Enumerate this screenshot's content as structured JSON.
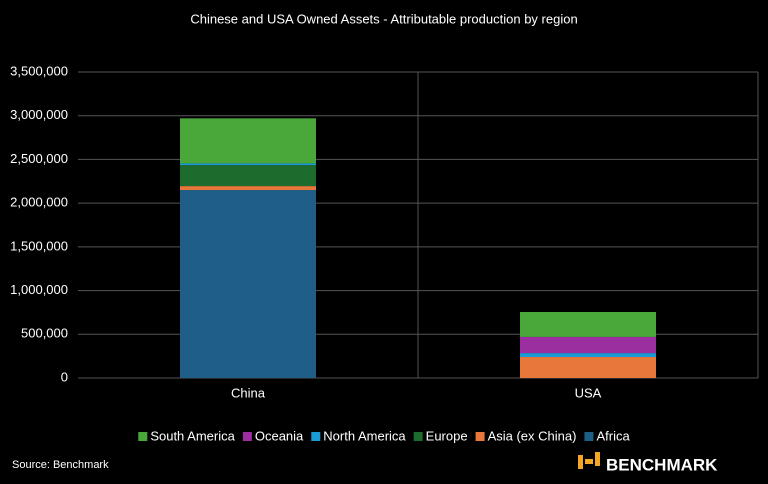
{
  "chart_data": {
    "type": "stacked_bar",
    "title": "Chinese and USA Owned Assets - Attributable production by region",
    "categories": [
      "China",
      "USA"
    ],
    "series": [
      {
        "name": "Africa",
        "color": "#1f5e86",
        "values": [
          2150000,
          0
        ]
      },
      {
        "name": "Asia (ex China)",
        "color": "#e8773a",
        "values": [
          45000,
          240000
        ]
      },
      {
        "name": "Europe",
        "color": "#1e6b2e",
        "values": [
          240000,
          0
        ]
      },
      {
        "name": "North America",
        "color": "#1b9ad6",
        "values": [
          20000,
          45000
        ]
      },
      {
        "name": "Oceania",
        "color": "#9b2fa0",
        "values": [
          0,
          185000
        ]
      },
      {
        "name": "South America",
        "color": "#4aa83a",
        "values": [
          515000,
          285000
        ]
      }
    ],
    "ylim": [
      0,
      3500000
    ],
    "yticks": [
      0,
      {
        "value": 500000,
        "label": "500,000"
      },
      {
        "value": 1000000,
        "label": "1,000,000"
      },
      {
        "value": 1500000,
        "label": "1,500,000"
      },
      {
        "value": 2000000,
        "label": "2,000,000"
      },
      {
        "value": 2500000,
        "label": "2,500,000"
      },
      {
        "value": 3000000,
        "label": "3,000,000"
      },
      {
        "value": 3500000,
        "label": "3,500,000"
      }
    ],
    "grid": true,
    "legend": "bottom",
    "source": "Source: Benchmark",
    "logo": "BENCHMARK"
  }
}
